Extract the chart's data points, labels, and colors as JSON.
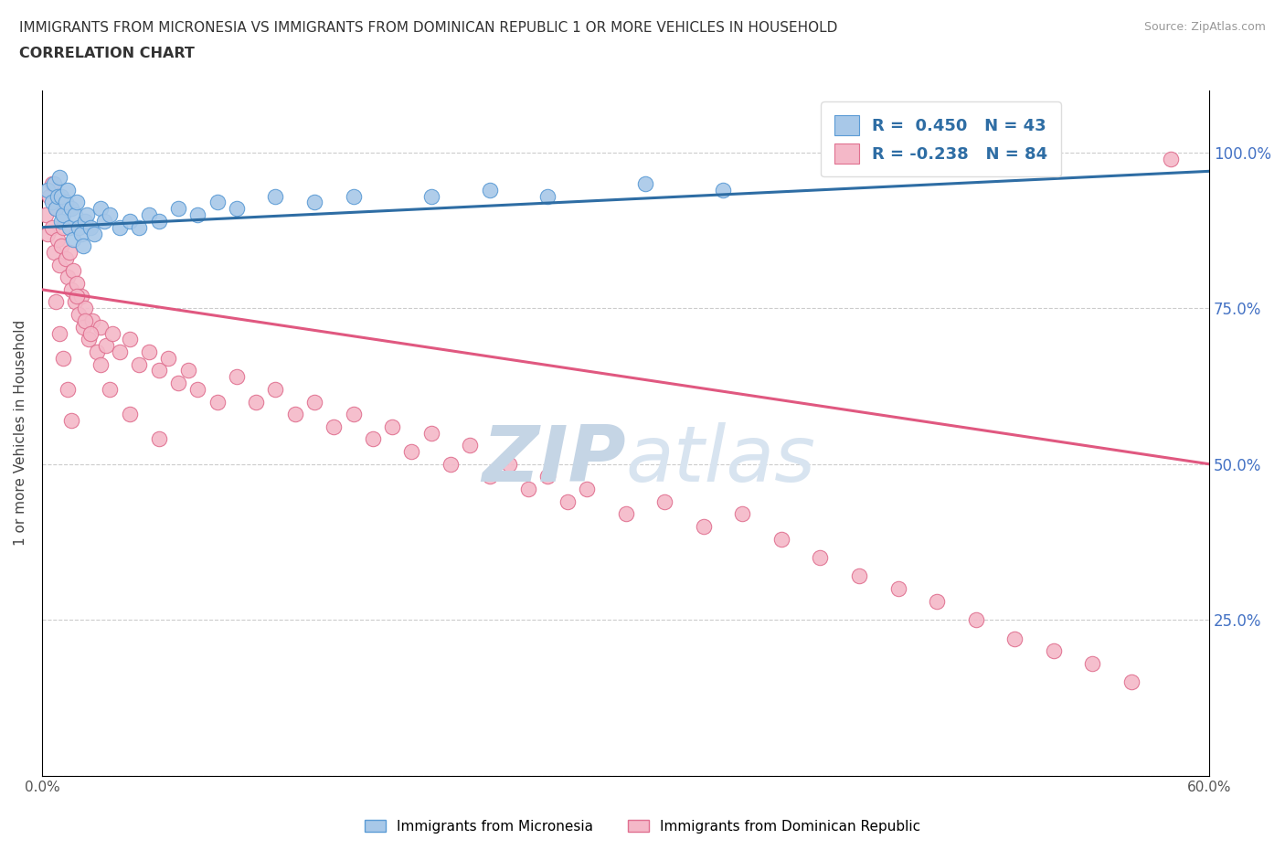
{
  "title_line1": "IMMIGRANTS FROM MICRONESIA VS IMMIGRANTS FROM DOMINICAN REPUBLIC 1 OR MORE VEHICLES IN HOUSEHOLD",
  "title_line2": "CORRELATION CHART",
  "source_text": "Source: ZipAtlas.com",
  "ylabel": "1 or more Vehicles in Household",
  "legend_label1": "Immigrants from Micronesia",
  "legend_label2": "Immigrants from Dominican Republic",
  "R1": 0.45,
  "N1": 43,
  "R2": -0.238,
  "N2": 84,
  "xlim": [
    0.0,
    0.6
  ],
  "ylim": [
    0.0,
    1.1
  ],
  "color_blue": "#a8c8e8",
  "color_blue_edge": "#5b9bd5",
  "color_blue_line": "#2e6da4",
  "color_pink": "#f4b8c8",
  "color_pink_edge": "#e07090",
  "color_pink_line": "#e05880",
  "color_blue_text": "#2e6da4",
  "watermark_zip_color": "#d0dce8",
  "watermark_atlas_color": "#c8d8e8",
  "background_color": "#ffffff",
  "blue_line_x0": 0.0,
  "blue_line_y0": 0.88,
  "blue_line_x1": 0.6,
  "blue_line_y1": 0.97,
  "pink_line_x0": 0.0,
  "pink_line_y0": 0.78,
  "pink_line_x1": 0.6,
  "pink_line_y1": 0.5,
  "blue_x": [
    0.003,
    0.005,
    0.006,
    0.007,
    0.008,
    0.009,
    0.01,
    0.01,
    0.011,
    0.012,
    0.013,
    0.014,
    0.015,
    0.016,
    0.017,
    0.018,
    0.019,
    0.02,
    0.021,
    0.022,
    0.023,
    0.025,
    0.027,
    0.03,
    0.032,
    0.035,
    0.04,
    0.045,
    0.05,
    0.055,
    0.06,
    0.07,
    0.08,
    0.09,
    0.1,
    0.12,
    0.14,
    0.16,
    0.2,
    0.23,
    0.26,
    0.31,
    0.35
  ],
  "blue_y": [
    0.94,
    0.92,
    0.95,
    0.91,
    0.93,
    0.96,
    0.89,
    0.93,
    0.9,
    0.92,
    0.94,
    0.88,
    0.91,
    0.86,
    0.9,
    0.92,
    0.88,
    0.87,
    0.85,
    0.89,
    0.9,
    0.88,
    0.87,
    0.91,
    0.89,
    0.9,
    0.88,
    0.89,
    0.88,
    0.9,
    0.89,
    0.91,
    0.9,
    0.92,
    0.91,
    0.93,
    0.92,
    0.93,
    0.93,
    0.94,
    0.93,
    0.95,
    0.94
  ],
  "pink_x": [
    0.002,
    0.003,
    0.004,
    0.005,
    0.006,
    0.007,
    0.008,
    0.009,
    0.01,
    0.011,
    0.012,
    0.013,
    0.014,
    0.015,
    0.016,
    0.017,
    0.018,
    0.019,
    0.02,
    0.021,
    0.022,
    0.024,
    0.026,
    0.028,
    0.03,
    0.033,
    0.036,
    0.04,
    0.045,
    0.05,
    0.055,
    0.06,
    0.065,
    0.07,
    0.075,
    0.08,
    0.09,
    0.1,
    0.11,
    0.12,
    0.13,
    0.14,
    0.15,
    0.16,
    0.17,
    0.18,
    0.19,
    0.2,
    0.21,
    0.22,
    0.23,
    0.24,
    0.25,
    0.26,
    0.27,
    0.28,
    0.3,
    0.32,
    0.34,
    0.36,
    0.38,
    0.4,
    0.42,
    0.44,
    0.46,
    0.48,
    0.5,
    0.52,
    0.54,
    0.56,
    0.005,
    0.007,
    0.009,
    0.011,
    0.013,
    0.015,
    0.018,
    0.022,
    0.025,
    0.03,
    0.035,
    0.045,
    0.06,
    0.58
  ],
  "pink_y": [
    0.9,
    0.87,
    0.93,
    0.88,
    0.84,
    0.91,
    0.86,
    0.82,
    0.85,
    0.88,
    0.83,
    0.8,
    0.84,
    0.78,
    0.81,
    0.76,
    0.79,
    0.74,
    0.77,
    0.72,
    0.75,
    0.7,
    0.73,
    0.68,
    0.72,
    0.69,
    0.71,
    0.68,
    0.7,
    0.66,
    0.68,
    0.65,
    0.67,
    0.63,
    0.65,
    0.62,
    0.6,
    0.64,
    0.6,
    0.62,
    0.58,
    0.6,
    0.56,
    0.58,
    0.54,
    0.56,
    0.52,
    0.55,
    0.5,
    0.53,
    0.48,
    0.5,
    0.46,
    0.48,
    0.44,
    0.46,
    0.42,
    0.44,
    0.4,
    0.42,
    0.38,
    0.35,
    0.32,
    0.3,
    0.28,
    0.25,
    0.22,
    0.2,
    0.18,
    0.15,
    0.95,
    0.76,
    0.71,
    0.67,
    0.62,
    0.57,
    0.77,
    0.73,
    0.71,
    0.66,
    0.62,
    0.58,
    0.54,
    0.99
  ]
}
